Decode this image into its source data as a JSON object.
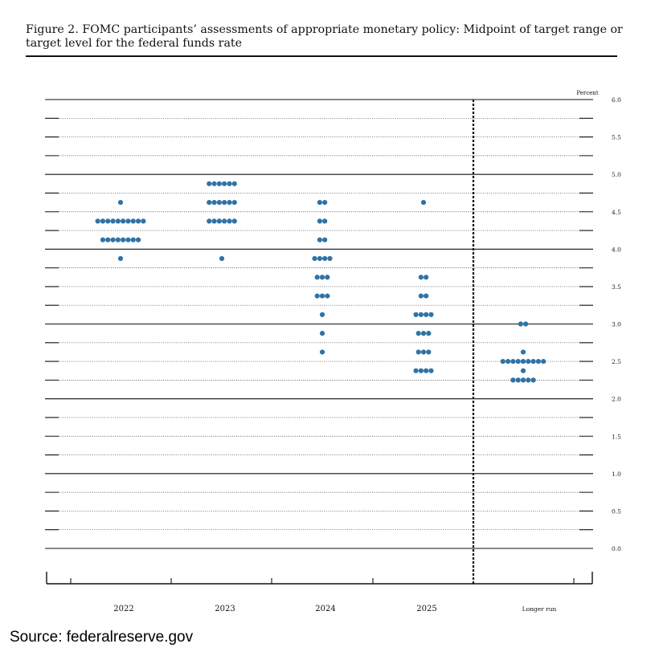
{
  "figure": {
    "title": "Figure 2.  FOMC participants’ assessments of appropriate monetary policy: Midpoint of target range or target level for the federal funds rate"
  },
  "source": "Source: federalreserve.gov",
  "colors": {
    "dot": "#2f73a6",
    "line": "#111111"
  },
  "chart_data": {
    "type": "scatter",
    "title": "",
    "xlabel": "",
    "ylabel": "Percent",
    "categories": [
      "2022",
      "2023",
      "2024",
      "2025",
      "Longer run"
    ],
    "ylim": [
      0,
      6.0
    ],
    "y_tick_labels": [
      "0.0",
      "0.5",
      "1.0",
      "1.5",
      "2.0",
      "2.5",
      "3.0",
      "3.5",
      "4.0",
      "4.5",
      "5.0",
      "5.5",
      "6.0"
    ],
    "legend": "none",
    "grid": true,
    "vertical_divider_before": "Longer run",
    "dots": [
      {
        "category": "2022",
        "points": [
          {
            "rate": 4.625,
            "count": 1
          },
          {
            "rate": 4.375,
            "count": 10
          },
          {
            "rate": 4.125,
            "count": 8
          },
          {
            "rate": 3.875,
            "count": 1
          }
        ]
      },
      {
        "category": "2023",
        "points": [
          {
            "rate": 4.875,
            "count": 6
          },
          {
            "rate": 4.625,
            "count": 6
          },
          {
            "rate": 4.375,
            "count": 6
          },
          {
            "rate": 3.875,
            "count": 1
          }
        ]
      },
      {
        "category": "2024",
        "points": [
          {
            "rate": 4.625,
            "count": 2
          },
          {
            "rate": 4.375,
            "count": 2
          },
          {
            "rate": 4.125,
            "count": 2
          },
          {
            "rate": 3.875,
            "count": 4
          },
          {
            "rate": 3.625,
            "count": 3
          },
          {
            "rate": 3.375,
            "count": 3
          },
          {
            "rate": 3.125,
            "count": 1
          },
          {
            "rate": 2.875,
            "count": 1
          },
          {
            "rate": 2.625,
            "count": 1
          }
        ]
      },
      {
        "category": "2025",
        "points": [
          {
            "rate": 4.625,
            "count": 1
          },
          {
            "rate": 3.625,
            "count": 2
          },
          {
            "rate": 3.375,
            "count": 2
          },
          {
            "rate": 3.125,
            "count": 4
          },
          {
            "rate": 2.875,
            "count": 3
          },
          {
            "rate": 2.625,
            "count": 3
          },
          {
            "rate": 2.375,
            "count": 4
          }
        ]
      },
      {
        "category": "Longer run",
        "points": [
          {
            "rate": 3.0,
            "count": 2
          },
          {
            "rate": 2.625,
            "count": 1
          },
          {
            "rate": 2.5,
            "count": 9
          },
          {
            "rate": 2.375,
            "count": 1
          },
          {
            "rate": 2.25,
            "count": 5
          }
        ]
      }
    ]
  }
}
